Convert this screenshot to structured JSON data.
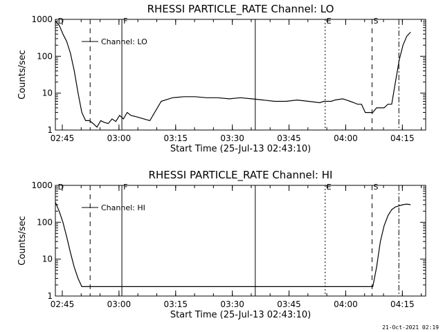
{
  "footer": {
    "date": "21-Oct-2021 02:19"
  },
  "chart_data": [
    {
      "type": "line",
      "title": "RHESSI PARTICLE_RATE Channel: LO",
      "xlabel": "Start Time (25-Jul-13 02:43:10)",
      "ylabel": "Counts/sec",
      "y_scale": "log",
      "ylim": [
        1,
        1000
      ],
      "y_ticks": [
        1,
        10,
        100,
        1000
      ],
      "y_tick_labels": [
        "1",
        "10",
        "100",
        "1000"
      ],
      "x_unit": "minutes since 02:43:10",
      "xlim": [
        0,
        98
      ],
      "x_ticks": [
        1.83,
        16.83,
        31.83,
        46.83,
        61.83,
        76.83,
        91.83
      ],
      "x_tick_labels": [
        "02:45",
        "03:00",
        "03:15",
        "03:30",
        "03:45",
        "04:00",
        "04:15"
      ],
      "legend": "top-left",
      "series": [
        {
          "name": "Channel: LO",
          "x": [
            0,
            1,
            2,
            3,
            4,
            5,
            6,
            7,
            8,
            9,
            10,
            11,
            12,
            13,
            14,
            15,
            16,
            17,
            18,
            19,
            20,
            22,
            25,
            28,
            31,
            34,
            37,
            40,
            43,
            46,
            49,
            52,
            55,
            58,
            61,
            64,
            67,
            70,
            71,
            72,
            73,
            74,
            76,
            77,
            78,
            79,
            80,
            81,
            82,
            83,
            84,
            85,
            86,
            87,
            88,
            89,
            90,
            91,
            92,
            93,
            94
          ],
          "y": [
            900,
            700,
            400,
            250,
            120,
            40,
            10,
            3,
            1.8,
            1.8,
            1.5,
            1.2,
            1.8,
            1.6,
            1.5,
            2,
            1.7,
            2.5,
            2,
            3,
            2.5,
            2.2,
            1.8,
            6,
            7.5,
            8,
            8,
            7.5,
            7.5,
            7,
            7.5,
            7,
            6.5,
            6,
            6,
            6.5,
            6,
            5.5,
            6,
            6,
            6,
            6.5,
            7,
            6.5,
            6,
            5.5,
            5,
            5,
            3,
            3,
            3,
            4,
            4,
            4,
            5,
            5,
            20,
            80,
            200,
            350,
            450
          ]
        }
      ],
      "markers": [
        {
          "label": "D",
          "x": 0.3,
          "style": "none"
        },
        {
          "label": "",
          "x": 9.2,
          "style": "dashed"
        },
        {
          "label": "F",
          "x": 17.6,
          "style": "solid"
        },
        {
          "label": "",
          "x": 52.9,
          "style": "solid"
        },
        {
          "label": "E",
          "x": 71.4,
          "style": "dotted"
        },
        {
          "label": "S",
          "x": 83.8,
          "style": "dashed"
        },
        {
          "label": "",
          "x": 90.9,
          "style": "dashdot"
        }
      ]
    },
    {
      "type": "line",
      "title": "RHESSI PARTICLE_RATE Channel: HI",
      "xlabel": "Start Time (25-Jul-13 02:43:10)",
      "ylabel": "Counts/sec",
      "y_scale": "log",
      "ylim": [
        1,
        1000
      ],
      "y_ticks": [
        1,
        10,
        100,
        1000
      ],
      "y_tick_labels": [
        "1",
        "10",
        "100",
        "1000"
      ],
      "x_unit": "minutes since 02:43:10",
      "xlim": [
        0,
        98
      ],
      "x_ticks": [
        1.83,
        16.83,
        31.83,
        46.83,
        61.83,
        76.83,
        91.83
      ],
      "x_tick_labels": [
        "02:45",
        "03:00",
        "03:15",
        "03:30",
        "03:45",
        "04:00",
        "04:15"
      ],
      "legend": "top-left",
      "series": [
        {
          "name": "Channel: HI",
          "x": [
            0,
            1,
            2,
            3,
            4,
            5,
            6,
            7,
            84,
            85,
            86,
            87,
            88,
            89,
            90,
            91,
            92,
            93,
            94
          ],
          "y": [
            350,
            200,
            100,
            40,
            15,
            6,
            3,
            1.8,
            1.8,
            6,
            30,
            80,
            150,
            220,
            260,
            280,
            300,
            310,
            300
          ]
        }
      ],
      "markers": [
        {
          "label": "D",
          "x": 0.3,
          "style": "none"
        },
        {
          "label": "",
          "x": 9.2,
          "style": "dashed"
        },
        {
          "label": "F",
          "x": 17.6,
          "style": "solid"
        },
        {
          "label": "",
          "x": 52.9,
          "style": "solid"
        },
        {
          "label": "E",
          "x": 71.4,
          "style": "dotted"
        },
        {
          "label": "S",
          "x": 83.8,
          "style": "dashed"
        },
        {
          "label": "",
          "x": 90.9,
          "style": "dashdot"
        }
      ]
    }
  ]
}
